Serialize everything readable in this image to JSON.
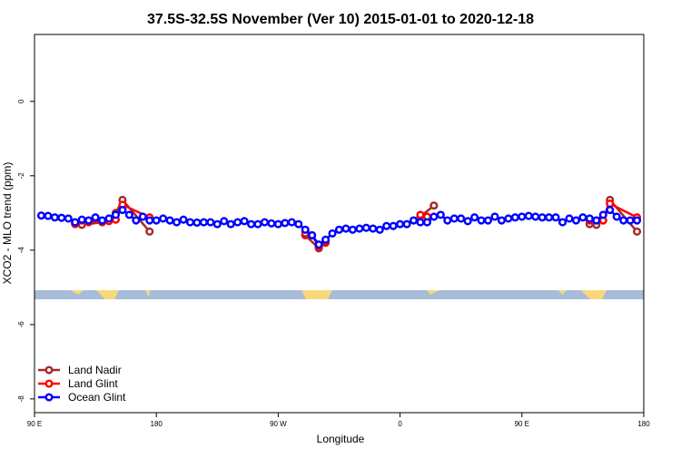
{
  "chart_data": {
    "type": "line",
    "title": "37.5S-32.5S November (Ver 10)   2015-01-01 to 2020-12-18",
    "x_label": "Longitude",
    "y_label": "XCO2 - MLO trend (ppm)",
    "xlim": [
      90,
      540
    ],
    "ylim": [
      -8.37,
      1.8
    ],
    "xticks": [
      {
        "value": 90,
        "label": "90 E"
      },
      180,
      {
        "value": 270,
        "label": "90 W"
      },
      {
        "value": 360,
        "label": "0"
      },
      {
        "value": 450,
        "label": "90 E"
      },
      {
        "value": 540,
        "label": "180"
      }
    ],
    "yticks": [
      0,
      -2,
      -4,
      -6,
      -8
    ],
    "legend": "bottom-left",
    "series": [
      {
        "name": "Land Nadir",
        "color": "#a52a2a",
        "x": [
          120,
          125,
          140,
          150,
          155,
          175,
          180,
          290,
          300,
          305,
          310,
          375,
          385,
          490,
          500,
          505,
          510,
          515,
          535
        ],
        "values": [
          -3.3,
          -3.32,
          -3.25,
          -3.0,
          -2.65,
          -3.5,
          null,
          -3.6,
          -3.95,
          -3.8,
          null,
          -3.1,
          -2.8,
          null,
          -3.3,
          -3.32,
          -3.2,
          -2.65,
          -3.5
        ]
      },
      {
        "name": "Land Glint",
        "color": "#ff0000",
        "x": [
          120,
          125,
          130,
          140,
          145,
          150,
          155,
          175,
          180,
          290,
          295,
          300,
          305,
          310,
          375,
          380,
          490,
          500,
          505,
          510,
          515,
          535
        ],
        "values": [
          -3.28,
          -3.2,
          -3.25,
          -3.22,
          -3.22,
          -3.18,
          -2.78,
          -3.12,
          null,
          -3.55,
          -3.6,
          -3.9,
          -3.78,
          null,
          -3.05,
          -3.1,
          null,
          -3.2,
          -3.2,
          -3.2,
          -2.75,
          -3.12
        ]
      },
      {
        "name": "Ocean Glint",
        "color": "#0000ff",
        "x": [
          95,
          100,
          105,
          110,
          115,
          120,
          125,
          130,
          135,
          140,
          145,
          150,
          155,
          160,
          165,
          170,
          175,
          180,
          185,
          190,
          195,
          200,
          205,
          210,
          215,
          220,
          225,
          230,
          235,
          240,
          245,
          250,
          255,
          260,
          265,
          270,
          275,
          280,
          285,
          290,
          295,
          300,
          305,
          310,
          315,
          320,
          325,
          330,
          335,
          340,
          345,
          350,
          355,
          360,
          365,
          370,
          375,
          380,
          385,
          390,
          395,
          400,
          405,
          410,
          415,
          420,
          425,
          430,
          435,
          440,
          445,
          450,
          455,
          460,
          465,
          470,
          475,
          480,
          485,
          490,
          495,
          500,
          505,
          510,
          515,
          520,
          525,
          530,
          535
        ],
        "values": [
          -3.07,
          -3.08,
          -3.12,
          -3.13,
          -3.15,
          -3.25,
          -3.18,
          -3.2,
          -3.12,
          -3.2,
          -3.15,
          -3.05,
          -2.92,
          -3.05,
          -3.2,
          -3.1,
          -3.2,
          -3.2,
          -3.15,
          -3.2,
          -3.25,
          -3.18,
          -3.25,
          -3.26,
          -3.25,
          -3.25,
          -3.3,
          -3.22,
          -3.3,
          -3.25,
          -3.22,
          -3.3,
          -3.3,
          -3.25,
          -3.28,
          -3.3,
          -3.27,
          -3.25,
          -3.3,
          -3.45,
          -3.6,
          -3.85,
          -3.72,
          -3.55,
          -3.45,
          -3.42,
          -3.45,
          -3.42,
          -3.4,
          -3.42,
          -3.45,
          -3.35,
          -3.35,
          -3.3,
          -3.3,
          -3.2,
          -3.25,
          -3.25,
          -3.1,
          -3.05,
          -3.2,
          -3.15,
          -3.15,
          -3.22,
          -3.12,
          -3.2,
          -3.2,
          -3.1,
          -3.2,
          -3.15,
          -3.12,
          -3.1,
          -3.08,
          -3.1,
          -3.12,
          -3.12,
          -3.12,
          -3.25,
          -3.15,
          -3.2,
          -3.12,
          -3.15,
          -3.2,
          -3.05,
          -2.92,
          -3.1,
          -3.2,
          -3.2,
          -3.2
        ]
      }
    ]
  }
}
